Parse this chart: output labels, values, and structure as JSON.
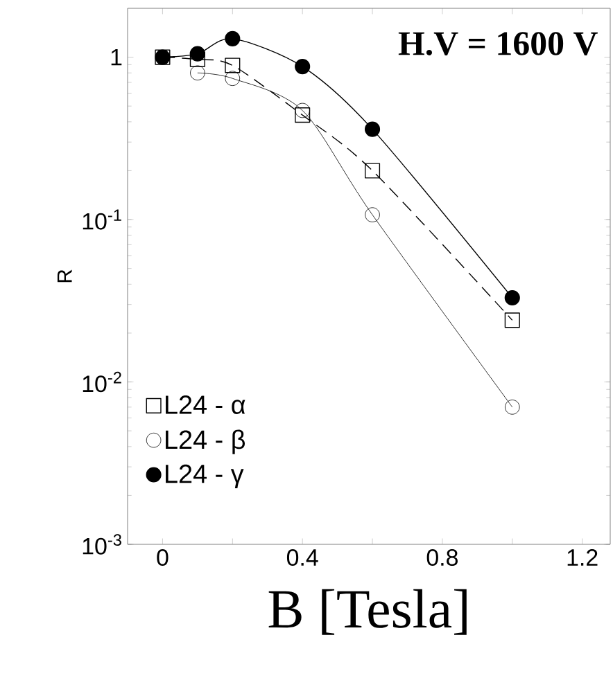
{
  "chart_data": {
    "type": "line",
    "xlabel": "B [Tesla]",
    "ylabel": "R",
    "annotations": [
      "H.V = 1600 V"
    ],
    "log": "y",
    "xlim": [
      -0.1,
      1.28
    ],
    "ylim": [
      0.001,
      2
    ],
    "xticks": [
      0,
      {
        "value": 0.2,
        "label": null
      },
      0.4,
      {
        "value": 0.6,
        "label": null
      },
      0.8,
      {
        "value": 1.0,
        "label": null
      },
      1.2
    ],
    "yticks": [
      {
        "value": 0.001,
        "label": "10$^{-3}$"
      },
      {
        "value": 0.01,
        "label": "10$^{-2}$"
      },
      {
        "value": 0.1,
        "label": "10$^{-1}$"
      },
      1
    ],
    "x": [
      0,
      0.1,
      0.2,
      0.4,
      0.6,
      1.0
    ],
    "legend": "bottom left",
    "grid": false,
    "series": [
      {
        "name": "L24 - α",
        "color": "#000000",
        "marker": "square",
        "line_style": "dashed",
        "values": [
          1.0,
          0.97,
          0.89,
          0.44,
          0.2,
          0.024
        ]
      },
      {
        "name": "L24 - β",
        "color": "#000000",
        "marker": "circle",
        "line_style": "solid",
        "values": [
          null,
          0.8,
          0.74,
          0.47,
          0.107,
          0.007
        ]
      },
      {
        "name": "L24 - γ",
        "color": "#000000",
        "marker": "filled circle",
        "line_style": "solid",
        "values": [
          1.0,
          1.05,
          1.3,
          0.875,
          0.36,
          0.033
        ]
      }
    ]
  }
}
